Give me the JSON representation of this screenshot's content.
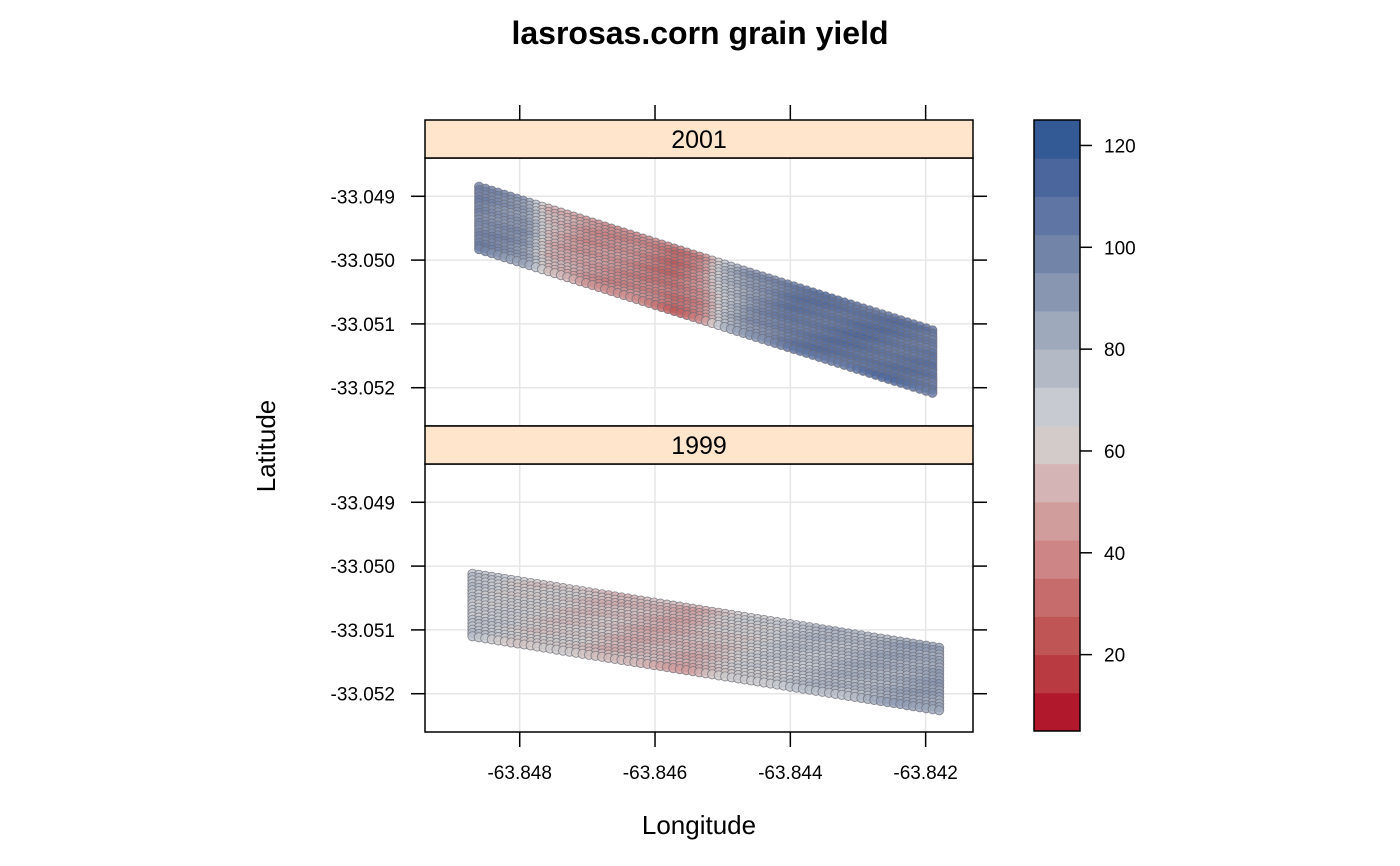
{
  "chart_data": {
    "type": "scatter",
    "title": "lasrosas.corn grain yield",
    "xlabel": "Longitude",
    "ylabel": "Latitude",
    "xlim": [
      -63.8494,
      -63.8413
    ],
    "ylim": [
      -33.0526,
      -33.0484
    ],
    "x_ticks": [
      {
        "value": -63.848,
        "label": "-63.848"
      },
      {
        "value": -63.846,
        "label": "-63.846"
      },
      {
        "value": -63.844,
        "label": "-63.844"
      },
      {
        "value": -63.842,
        "label": "-63.842"
      }
    ],
    "y_ticks": [
      {
        "value": -33.049,
        "label": "-33.049"
      },
      {
        "value": -33.05,
        "label": "-33.050"
      },
      {
        "value": -33.051,
        "label": "-33.051"
      },
      {
        "value": -33.052,
        "label": "-33.052"
      }
    ],
    "grid": true,
    "colorbar": {
      "range": [
        5,
        125
      ],
      "ticks": [
        {
          "value": 20,
          "label": "20"
        },
        {
          "value": 40,
          "label": "40"
        },
        {
          "value": 60,
          "label": "60"
        },
        {
          "value": 80,
          "label": "80"
        },
        {
          "value": 100,
          "label": "100"
        },
        {
          "value": 120,
          "label": "120"
        }
      ],
      "colors": [
        "#b2182b",
        "#b93a40",
        "#c05555",
        "#c66c6c",
        "#cd8585",
        "#d19c9c",
        "#d4b4b4",
        "#d3cbc9",
        "#c7cbd1",
        "#b3bac6",
        "#9ea9bc",
        "#8896b2",
        "#7384a9",
        "#5f75a3",
        "#4b669d",
        "#345a96"
      ],
      "placement": "right"
    },
    "strip_color": "#ffe5cc",
    "panels": [
      {
        "name": "2001",
        "order": "top",
        "strip": {
          "x0": -63.8486,
          "y0": -33.04885,
          "x1": -63.8419,
          "y1": -33.0511,
          "width": 0.00098
        },
        "yield_profile": [
          {
            "x": -63.8486,
            "value": 100
          },
          {
            "x": -63.8479,
            "value": 92
          },
          {
            "x": -63.8476,
            "value": 55
          },
          {
            "x": -63.847,
            "value": 42
          },
          {
            "x": -63.8463,
            "value": 38
          },
          {
            "x": -63.8457,
            "value": 28
          },
          {
            "x": -63.8453,
            "value": 40
          },
          {
            "x": -63.845,
            "value": 72
          },
          {
            "x": -63.8446,
            "value": 92
          },
          {
            "x": -63.844,
            "value": 108
          },
          {
            "x": -63.843,
            "value": 112
          },
          {
            "x": -63.8419,
            "value": 108
          }
        ]
      },
      {
        "name": "1999",
        "order": "bottom",
        "strip": {
          "x0": -63.8487,
          "y0": -33.05012,
          "x1": -63.8418,
          "y1": -33.05128,
          "width": 0.00098
        },
        "yield_profile": [
          {
            "x": -63.8487,
            "value": 72
          },
          {
            "x": -63.8478,
            "value": 62
          },
          {
            "x": -63.847,
            "value": 58
          },
          {
            "x": -63.8462,
            "value": 52
          },
          {
            "x": -63.8455,
            "value": 50
          },
          {
            "x": -63.8448,
            "value": 62
          },
          {
            "x": -63.844,
            "value": 72
          },
          {
            "x": -63.843,
            "value": 80
          },
          {
            "x": -63.8418,
            "value": 88
          }
        ]
      }
    ]
  }
}
